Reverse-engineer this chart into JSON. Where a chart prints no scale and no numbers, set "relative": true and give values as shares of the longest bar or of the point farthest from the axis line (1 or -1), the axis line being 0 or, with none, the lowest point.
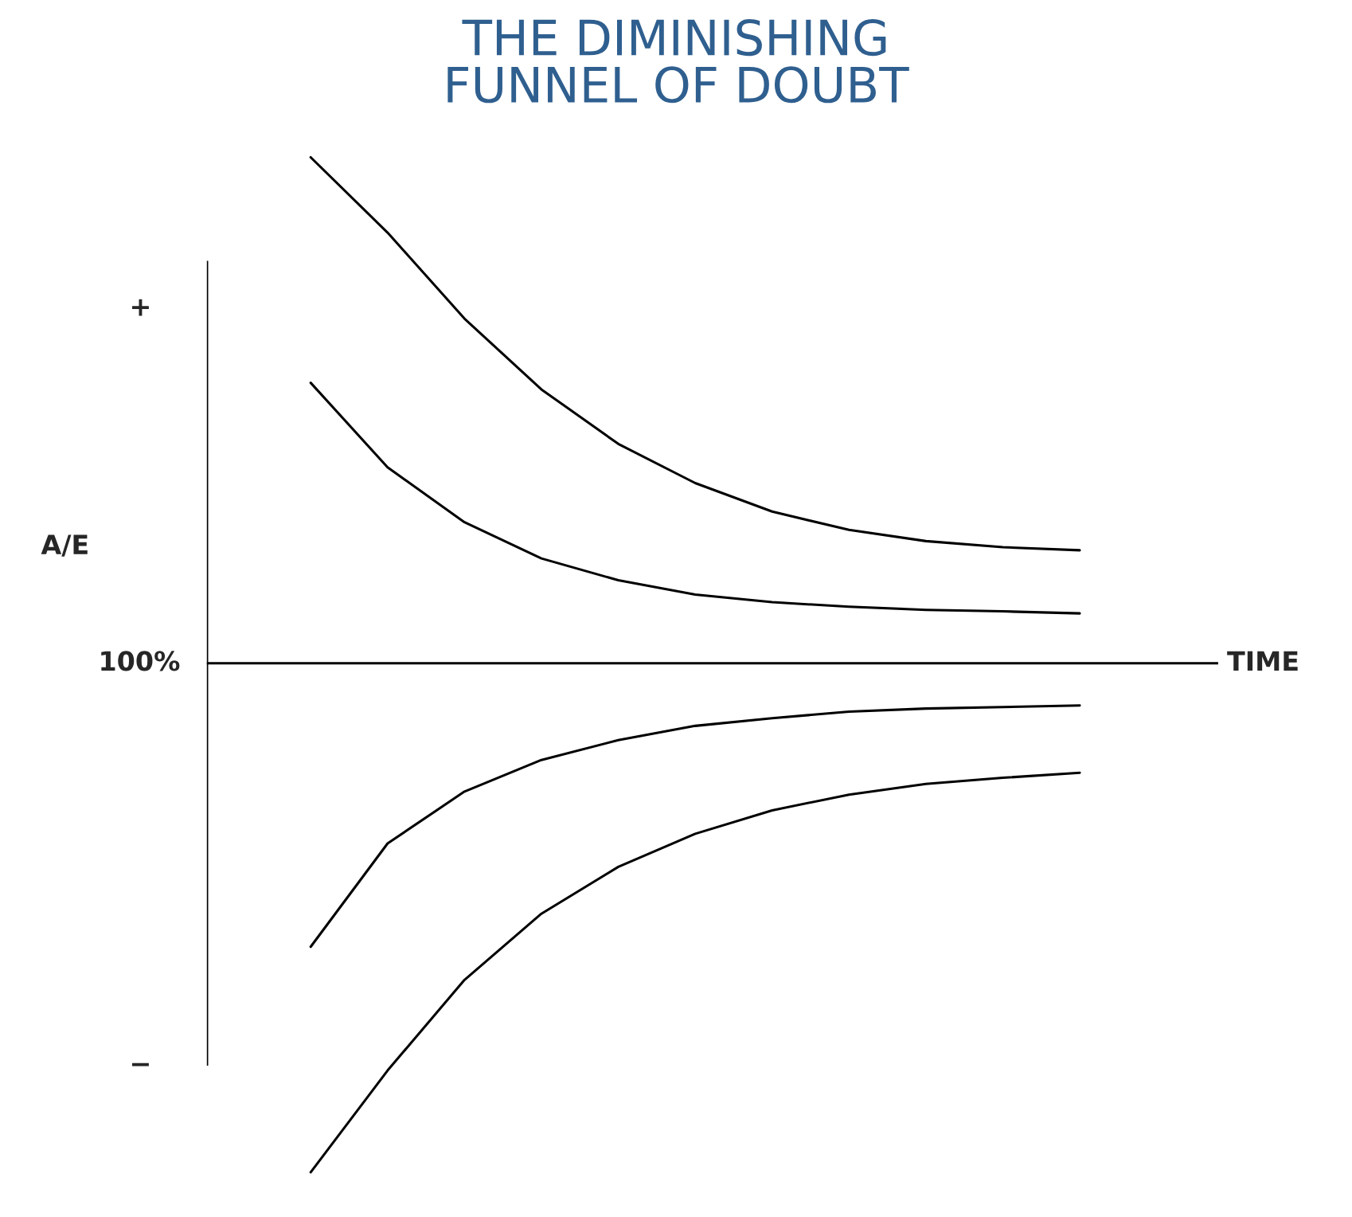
{
  "chart_data": {
    "type": "line",
    "title": "THE DIMINISHING\nFUNNEL OF DOUBT",
    "xlabel": "TIME",
    "relative": true,
    "legend": false,
    "marker": "none",
    "line_style": "solid",
    "categories": [
      null,
      null,
      null,
      null,
      null,
      null,
      null,
      null,
      null,
      null,
      null
    ],
    "annotations": [
      "+",
      "−",
      "A/E",
      "100%"
    ],
    "series": [
      {
        "color": "#000000",
        "values": [
          0.994,
          0.846,
          0.677,
          0.538,
          0.431,
          0.354,
          0.298,
          0.262,
          0.24,
          0.228,
          0.222
        ]
      },
      {
        "color": "#000000",
        "values": [
          0.551,
          0.385,
          0.277,
          0.206,
          0.163,
          0.135,
          0.12,
          0.111,
          0.105,
          0.102,
          0.098
        ]
      },
      {
        "color": "#000000",
        "values": [
          -0.557,
          -0.354,
          -0.252,
          -0.19,
          -0.151,
          -0.123,
          -0.108,
          -0.095,
          -0.089,
          -0.086,
          -0.083
        ]
      },
      {
        "color": "#000000",
        "values": [
          -1.0,
          -0.8,
          -0.622,
          -0.492,
          -0.4,
          -0.335,
          -0.289,
          -0.258,
          -0.237,
          -0.225,
          -0.215
        ]
      }
    ]
  }
}
